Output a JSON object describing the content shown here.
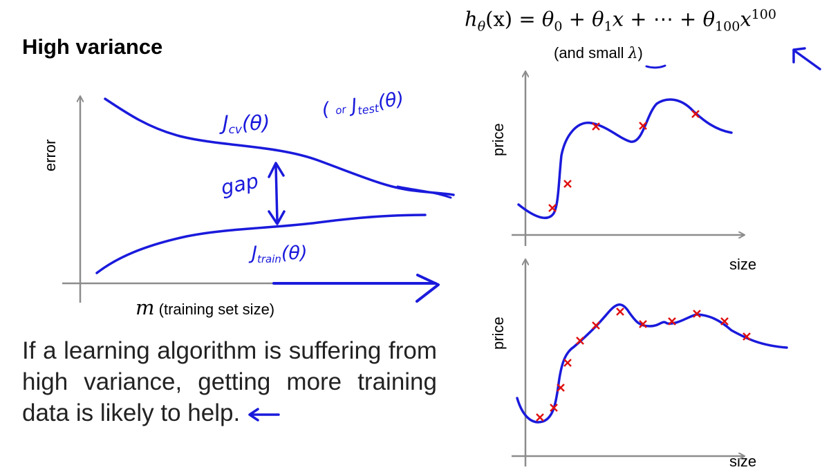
{
  "slide": {
    "title": "High variance",
    "formula": {
      "lhs_func": "h",
      "lhs_sub": "θ",
      "lhs_arg": "(x) = ",
      "t0": "θ",
      "t0_sub": "0",
      "plus1": " + ",
      "t1": "θ",
      "t1_sub": "1",
      "t1_x": "x",
      "dots": " + ⋯ + ",
      "t100": "θ",
      "t100_sub": "100",
      "t100_x": "x",
      "t100_sup": "100"
    },
    "lambda_note": {
      "open": "(and small ",
      "symbol": "λ",
      "close": ")"
    },
    "left_plot": {
      "y_label": "error",
      "x_var": "m",
      "x_label": "(training set size)",
      "annotations": [
        "Jcv(θ)",
        "(or Jtest(θ))",
        "gap",
        "Jtrain(θ)"
      ]
    },
    "right_plots": [
      {
        "y_label": "price",
        "x_label": "size"
      },
      {
        "y_label": "price",
        "x_label": "size"
      }
    ],
    "conclusion": "If a learning algorithm is suffering from high variance, getting more training data is likely to help."
  }
}
